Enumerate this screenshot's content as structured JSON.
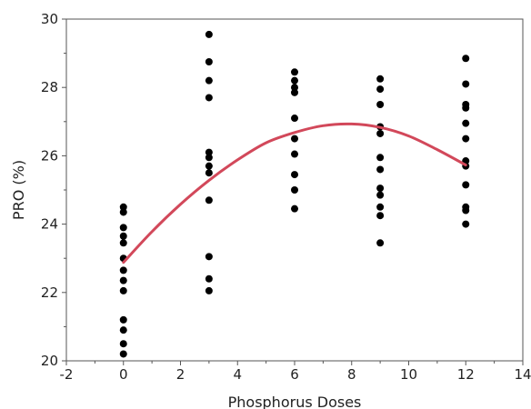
{
  "chart_data": {
    "type": "scatter",
    "xlabel": "Phosphorus Doses",
    "ylabel": "PRO (%)",
    "xlim": [
      -2,
      14
    ],
    "ylim": [
      20,
      30
    ],
    "xticks": [
      -2,
      0,
      2,
      4,
      6,
      8,
      10,
      12,
      14
    ],
    "yticks": [
      20,
      22,
      24,
      26,
      28,
      30
    ],
    "grid": false,
    "colors": {
      "points": "#000000",
      "fit": "#d2485a"
    },
    "points": [
      {
        "x": 0,
        "y": 24.5
      },
      {
        "x": 0,
        "y": 24.35
      },
      {
        "x": 0,
        "y": 23.9
      },
      {
        "x": 0,
        "y": 23.65
      },
      {
        "x": 0,
        "y": 23.45
      },
      {
        "x": 0,
        "y": 23.0
      },
      {
        "x": 0,
        "y": 22.65
      },
      {
        "x": 0,
        "y": 22.35
      },
      {
        "x": 0,
        "y": 22.05
      },
      {
        "x": 0,
        "y": 21.2
      },
      {
        "x": 0,
        "y": 20.9
      },
      {
        "x": 0,
        "y": 20.5
      },
      {
        "x": 0,
        "y": 20.2
      },
      {
        "x": 3,
        "y": 29.55
      },
      {
        "x": 3,
        "y": 28.75
      },
      {
        "x": 3,
        "y": 28.2
      },
      {
        "x": 3,
        "y": 27.7
      },
      {
        "x": 3,
        "y": 26.1
      },
      {
        "x": 3,
        "y": 25.95
      },
      {
        "x": 3,
        "y": 25.7
      },
      {
        "x": 3,
        "y": 25.5
      },
      {
        "x": 3,
        "y": 24.7
      },
      {
        "x": 3,
        "y": 23.05
      },
      {
        "x": 3,
        "y": 22.4
      },
      {
        "x": 3,
        "y": 22.05
      },
      {
        "x": 6,
        "y": 28.45
      },
      {
        "x": 6,
        "y": 28.2
      },
      {
        "x": 6,
        "y": 28.0
      },
      {
        "x": 6,
        "y": 27.85
      },
      {
        "x": 6,
        "y": 27.1
      },
      {
        "x": 6,
        "y": 26.5
      },
      {
        "x": 6,
        "y": 26.05
      },
      {
        "x": 6,
        "y": 25.45
      },
      {
        "x": 6,
        "y": 25.0
      },
      {
        "x": 6,
        "y": 24.45
      },
      {
        "x": 9,
        "y": 28.25
      },
      {
        "x": 9,
        "y": 27.95
      },
      {
        "x": 9,
        "y": 27.5
      },
      {
        "x": 9,
        "y": 26.85
      },
      {
        "x": 9,
        "y": 26.65
      },
      {
        "x": 9,
        "y": 25.95
      },
      {
        "x": 9,
        "y": 25.6
      },
      {
        "x": 9,
        "y": 25.05
      },
      {
        "x": 9,
        "y": 24.85
      },
      {
        "x": 9,
        "y": 24.5
      },
      {
        "x": 9,
        "y": 24.25
      },
      {
        "x": 9,
        "y": 23.45
      },
      {
        "x": 12,
        "y": 28.85
      },
      {
        "x": 12,
        "y": 28.1
      },
      {
        "x": 12,
        "y": 27.5
      },
      {
        "x": 12,
        "y": 27.4
      },
      {
        "x": 12,
        "y": 26.95
      },
      {
        "x": 12,
        "y": 26.5
      },
      {
        "x": 12,
        "y": 25.85
      },
      {
        "x": 12,
        "y": 25.7
      },
      {
        "x": 12,
        "y": 25.15
      },
      {
        "x": 12,
        "y": 24.5
      },
      {
        "x": 12,
        "y": 24.4
      },
      {
        "x": 12,
        "y": 24.0
      }
    ],
    "fit_curve": {
      "x": [
        0,
        1,
        2,
        3,
        4,
        5,
        6,
        7,
        8,
        9,
        10,
        11,
        12
      ],
      "y": [
        22.88,
        23.78,
        24.58,
        25.28,
        25.88,
        26.38,
        26.68,
        26.88,
        26.93,
        26.83,
        26.58,
        26.18,
        25.73
      ]
    }
  }
}
